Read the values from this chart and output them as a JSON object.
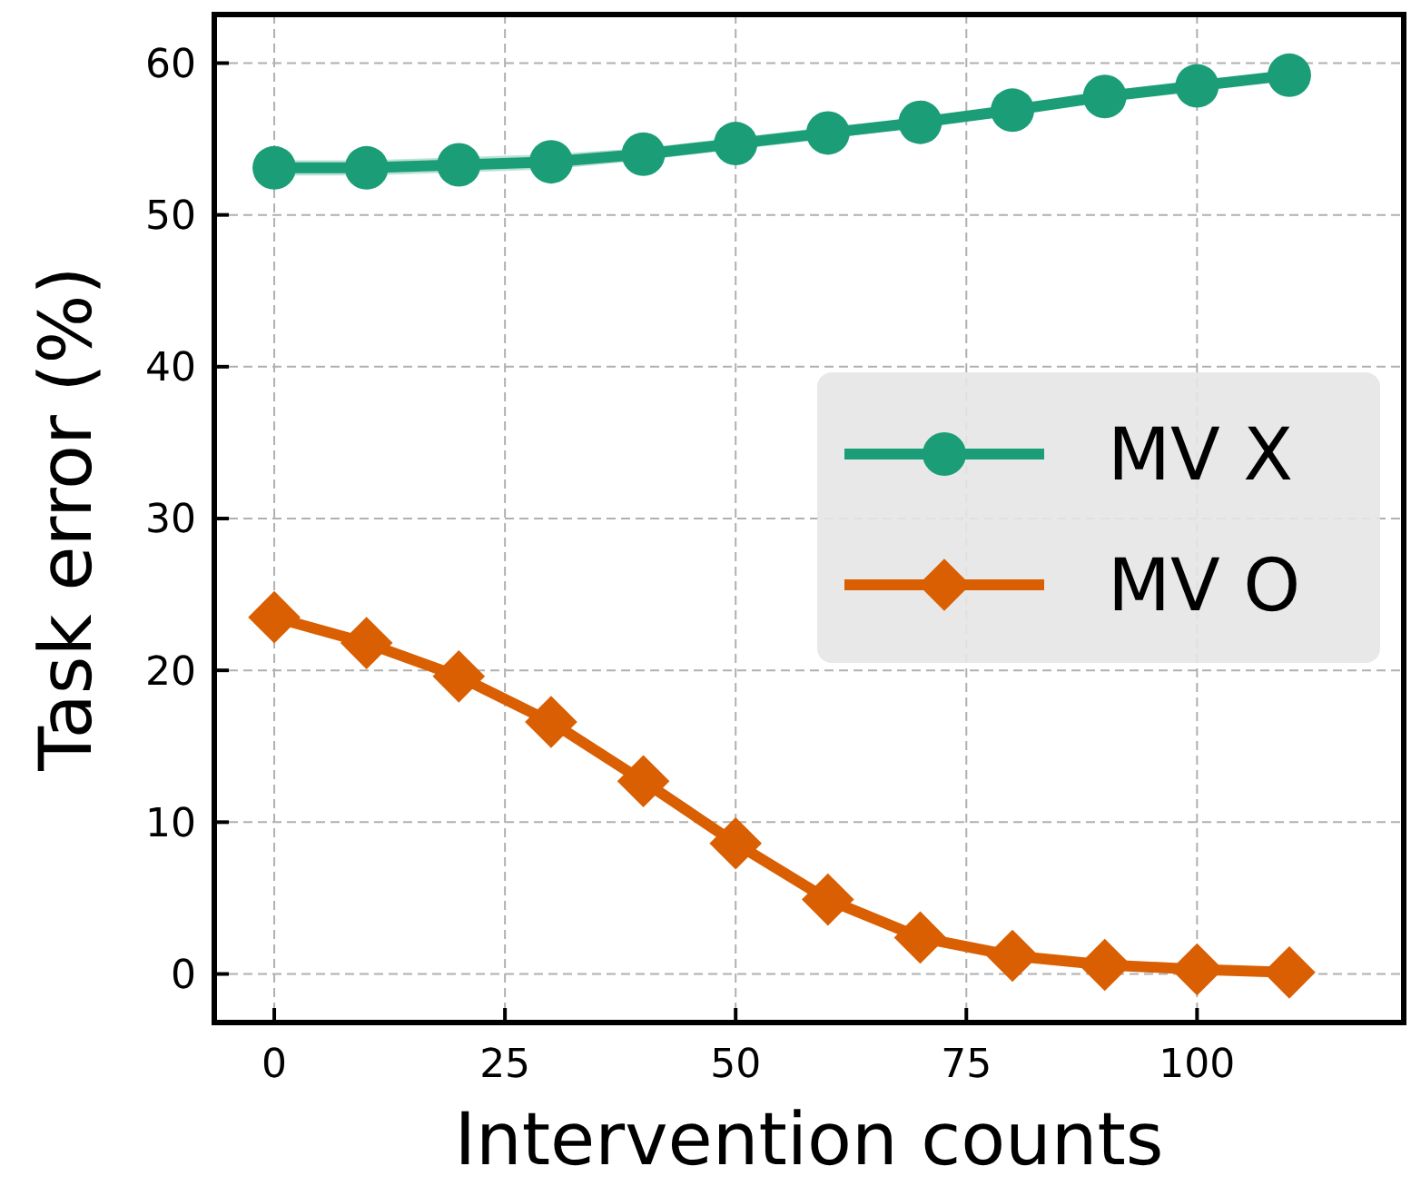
{
  "chart_data": {
    "type": "line",
    "xlabel": "Intervention counts",
    "ylabel": "Task error (%)",
    "x": [
      0,
      10,
      20,
      30,
      40,
      50,
      60,
      70,
      80,
      90,
      100,
      110
    ],
    "series": [
      {
        "name": "MV X",
        "color": "#1b9e77",
        "marker": "circle",
        "values": [
          53.1,
          53.1,
          53.3,
          53.5,
          54.0,
          54.7,
          55.4,
          56.1,
          56.9,
          57.8,
          58.5,
          59.2
        ],
        "lower": [
          52.6,
          52.6,
          52.8,
          53.0,
          53.6,
          54.3,
          55.0,
          55.8,
          56.6,
          57.5,
          58.2,
          58.9
        ],
        "upper": [
          53.6,
          53.6,
          53.8,
          54.0,
          54.4,
          55.1,
          55.8,
          56.4,
          57.2,
          58.1,
          58.8,
          59.5
        ]
      },
      {
        "name": "MV O",
        "color": "#d95f02",
        "marker": "diamond",
        "values": [
          23.5,
          21.8,
          19.6,
          16.6,
          12.7,
          8.6,
          4.9,
          2.4,
          1.2,
          0.6,
          0.3,
          0.1
        ]
      }
    ],
    "xlim": [
      -6.5,
      122.4
    ],
    "ylim": [
      -3.2,
      63.2
    ],
    "xticks": [
      0,
      25,
      50,
      75,
      100
    ],
    "yticks": [
      0,
      10,
      20,
      30,
      40,
      50,
      60
    ],
    "grid": true,
    "legend": "right",
    "line_style": "solid"
  }
}
